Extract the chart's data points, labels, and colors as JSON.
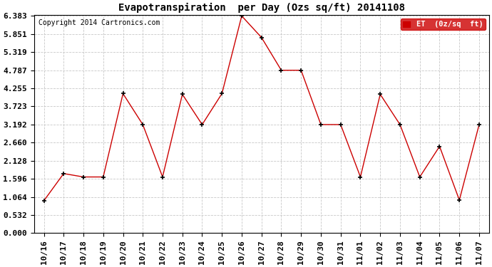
{
  "title": "Evapotranspiration  per Day (Ozs sq/ft) 20141108",
  "copyright": "Copyright 2014 Cartronics.com",
  "legend_label": "ET  (0z/sq  ft)",
  "x_labels": [
    "10/16",
    "10/17",
    "10/18",
    "10/19",
    "10/20",
    "10/21",
    "10/22",
    "10/23",
    "10/24",
    "10/25",
    "10/26",
    "10/27",
    "10/28",
    "10/29",
    "10/30",
    "10/31",
    "11/01",
    "11/02",
    "11/03",
    "11/04",
    "11/05",
    "11/06",
    "11/07"
  ],
  "y_values": [
    0.95,
    1.75,
    1.65,
    1.65,
    4.1,
    3.19,
    1.65,
    4.08,
    3.19,
    4.1,
    6.383,
    5.75,
    4.787,
    4.787,
    3.19,
    3.19,
    1.65,
    4.08,
    3.19,
    1.65,
    2.55,
    0.97,
    3.19
  ],
  "line_color": "#cc0000",
  "marker": "+",
  "marker_color": "black",
  "bg_color": "#ffffff",
  "grid_color": "#c8c8c8",
  "yticks": [
    0.0,
    0.532,
    1.064,
    1.596,
    2.128,
    2.66,
    3.192,
    3.723,
    4.255,
    4.787,
    5.319,
    5.851,
    6.383
  ],
  "ylim_min": 0.0,
  "ylim_max": 6.383,
  "legend_bg": "#cc0000",
  "legend_text_color": "#ffffff",
  "title_fontsize": 10,
  "tick_fontsize": 8,
  "copyright_fontsize": 7
}
